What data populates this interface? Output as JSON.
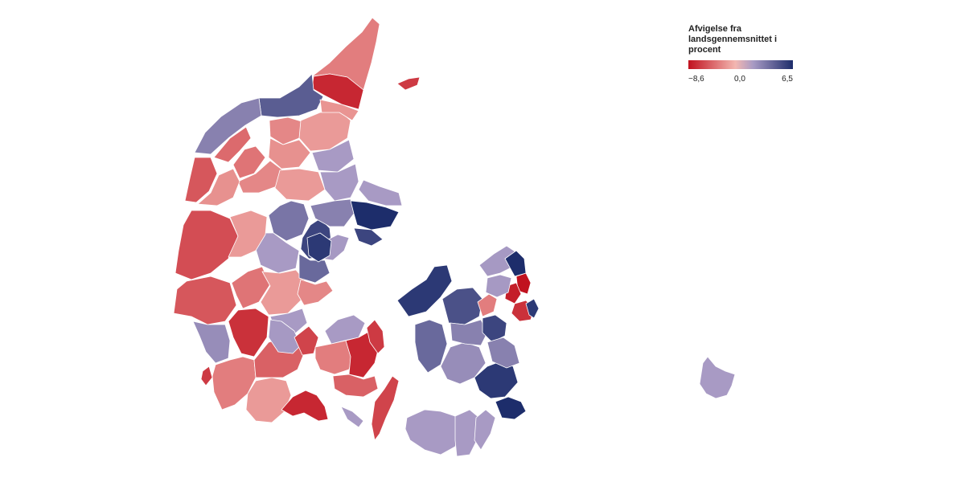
{
  "legend": {
    "title": "Afvigelse fra landsgennemsnittet i procent",
    "min_label": "−8,6",
    "mid_label": "0,0",
    "max_label": "6,5",
    "min_value": -8.6,
    "mid_value": 0.0,
    "max_value": 6.5,
    "colors": {
      "min": "#c1121f",
      "mid": "#f3b7b1",
      "mid_blue": "#a89ac4",
      "max": "#1d2d6b"
    }
  },
  "map": {
    "regions": [
      {
        "id": "r01",
        "value": -3.0
      },
      {
        "id": "r02",
        "value": -7.5
      },
      {
        "id": "r03",
        "value": -6.5
      },
      {
        "id": "r04",
        "value": 4.5
      },
      {
        "id": "r05",
        "value": 3.0
      },
      {
        "id": "r06",
        "value": -4.0
      },
      {
        "id": "r07",
        "value": -3.5
      },
      {
        "id": "r08",
        "value": -2.5
      },
      {
        "id": "r09",
        "value": -1.5
      },
      {
        "id": "r10",
        "value": -1.8
      },
      {
        "id": "r11",
        "value": 1.0
      },
      {
        "id": "r12",
        "value": -2.0
      },
      {
        "id": "r13",
        "value": -2.5
      },
      {
        "id": "r14",
        "value": -1.5
      },
      {
        "id": "r15",
        "value": 1.2
      },
      {
        "id": "r16",
        "value": -5.0
      },
      {
        "id": "r17",
        "value": -2.0
      },
      {
        "id": "r18",
        "value": 3.5
      },
      {
        "id": "r19",
        "value": 5.5
      },
      {
        "id": "r20",
        "value": 3.0
      },
      {
        "id": "r21",
        "value": 6.5
      },
      {
        "id": "r22",
        "value": 1.5
      },
      {
        "id": "r23",
        "value": 5.5
      },
      {
        "id": "r24",
        "value": 1.5
      },
      {
        "id": "r25",
        "value": -5.5
      },
      {
        "id": "r26",
        "value": -5.0
      },
      {
        "id": "r27",
        "value": -1.5
      },
      {
        "id": "r28",
        "value": -3.5
      },
      {
        "id": "r29",
        "value": -7.0
      },
      {
        "id": "r30",
        "value": -1.5
      },
      {
        "id": "r31",
        "value": 2.0
      },
      {
        "id": "r32",
        "value": 4.0
      },
      {
        "id": "r33",
        "value": 6.0
      },
      {
        "id": "r34",
        "value": -2.5
      },
      {
        "id": "r35",
        "value": 1.5
      },
      {
        "id": "r36",
        "value": 2.5
      },
      {
        "id": "r37",
        "value": -3.0
      },
      {
        "id": "r38",
        "value": -4.5
      },
      {
        "id": "r39",
        "value": -1.5
      },
      {
        "id": "r40",
        "value": -7.5
      },
      {
        "id": "r41",
        "value": 2.0
      },
      {
        "id": "r42",
        "value": -6.0
      },
      {
        "id": "r43",
        "value": -6.5
      },
      {
        "id": "r44",
        "value": 1.2
      },
      {
        "id": "r45",
        "value": 6.0
      },
      {
        "id": "r46",
        "value": 4.0
      },
      {
        "id": "r47",
        "value": 2.5
      },
      {
        "id": "r48",
        "value": 5.0
      },
      {
        "id": "r49",
        "value": 3.0
      },
      {
        "id": "r50",
        "value": 5.5
      },
      {
        "id": "r51",
        "value": 6.0
      },
      {
        "id": "r52",
        "value": 6.5
      },
      {
        "id": "r53",
        "value": 3.0
      },
      {
        "id": "r54",
        "value": -3.0
      },
      {
        "id": "r55",
        "value": -8.6
      },
      {
        "id": "r56",
        "value": -8.0
      },
      {
        "id": "r57",
        "value": -7.0
      },
      {
        "id": "r58",
        "value": 2.0
      },
      {
        "id": "r59",
        "value": 6.5
      },
      {
        "id": "r60",
        "value": -6.0
      },
      {
        "id": "r61",
        "value": 1.5
      },
      {
        "id": "r62",
        "value": 1.5
      },
      {
        "id": "r63",
        "value": 1.5
      },
      {
        "id": "r64",
        "value": 1.5
      },
      {
        "id": "r65",
        "value": 6.0
      },
      {
        "id": "r66",
        "value": -3.0
      },
      {
        "id": "r67",
        "value": 1.5
      },
      {
        "id": "r68",
        "value": -7.5
      },
      {
        "id": "r69",
        "value": 2.0
      },
      {
        "id": "r70",
        "value": -6.5
      },
      {
        "id": "r71",
        "value": -4.5
      }
    ]
  }
}
